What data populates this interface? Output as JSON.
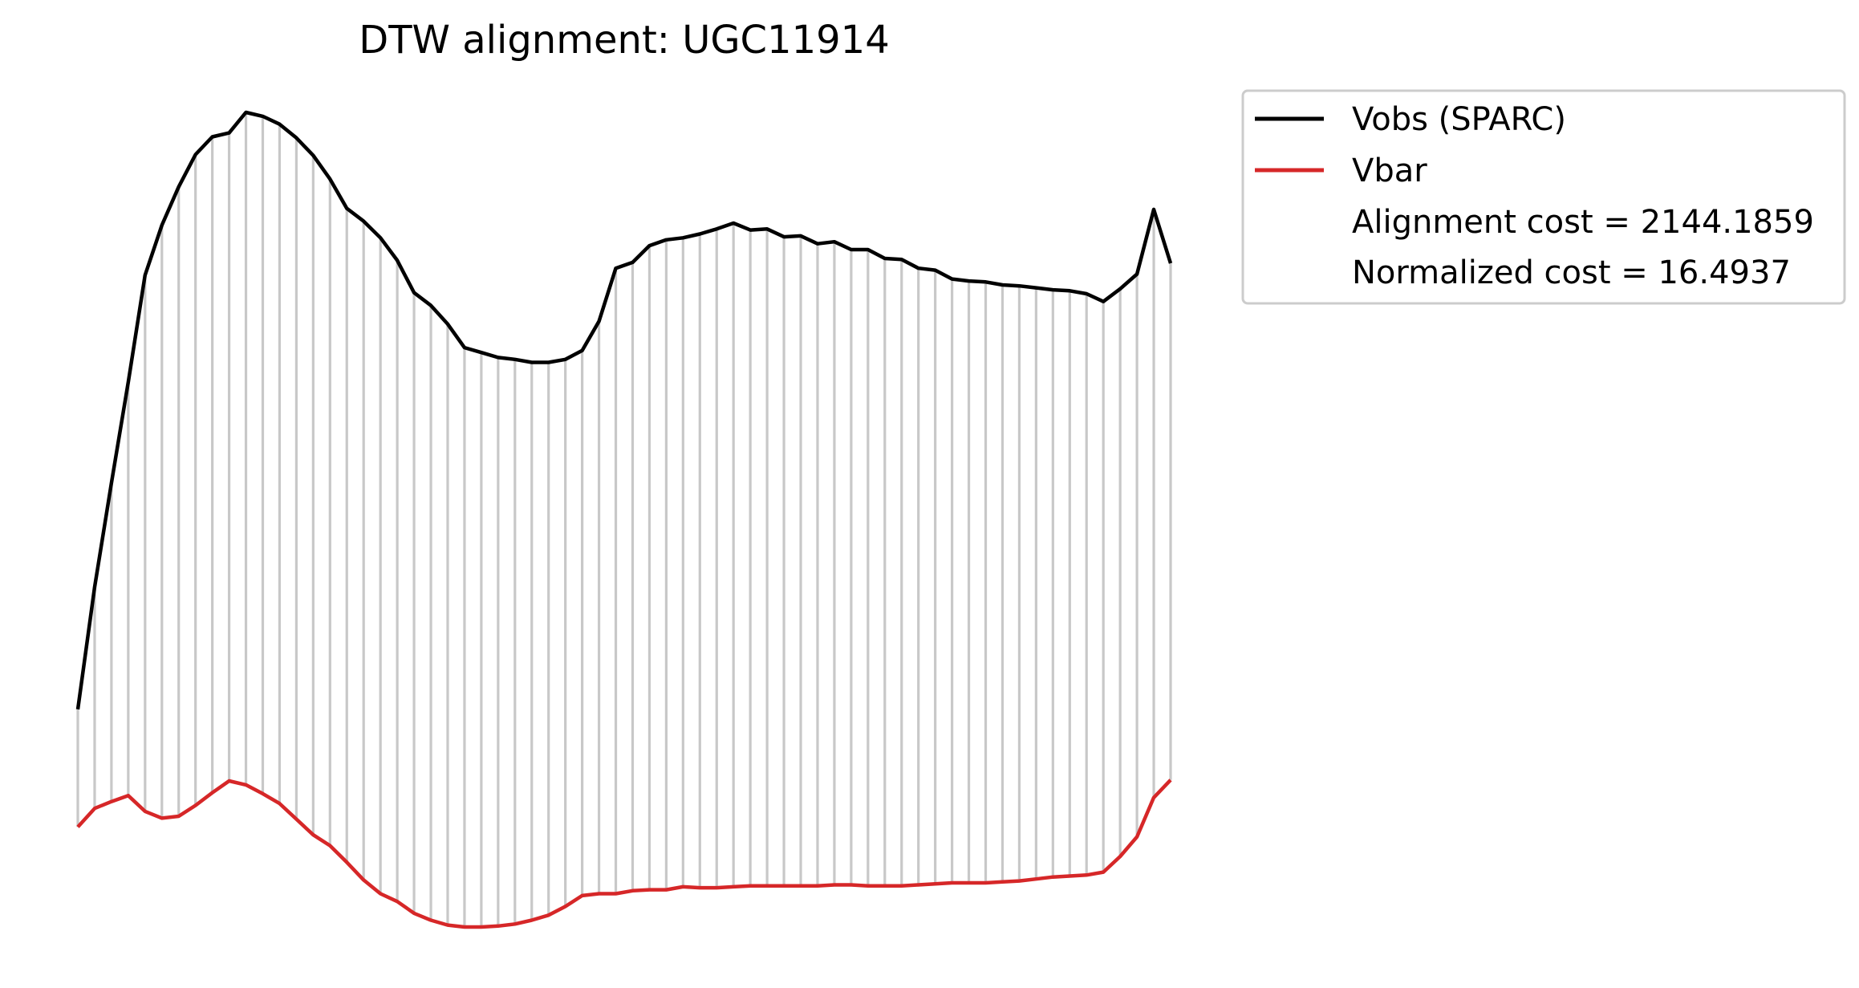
{
  "chart_data": {
    "type": "line",
    "title": "DTW alignment: UGC11914",
    "xlabel": "",
    "ylabel": "",
    "grid": false,
    "axes_visible": false,
    "legend": {
      "placement": "outside-upper-right",
      "entries": [
        {
          "label": "Vobs (SPARC)",
          "color": "#000000"
        },
        {
          "label": "Vbar",
          "color": "#d62728"
        },
        {
          "label": "Alignment cost = 2144.1859",
          "color": null
        },
        {
          "label": "Normalized cost = 16.4937",
          "color": null
        }
      ]
    },
    "connector_color": "#c8c8c8",
    "series": [
      {
        "name": "Vobs (SPARC)",
        "color": "#000000",
        "values": [
          -20.1,
          -7.6,
          3.0,
          13.3,
          24.2,
          29.3,
          33.2,
          36.5,
          38.3,
          38.7,
          40.8,
          40.4,
          39.6,
          38.2,
          36.4,
          34.0,
          31.0,
          29.7,
          28.0,
          25.7,
          22.4,
          21.1,
          19.2,
          16.8,
          16.3,
          15.8,
          15.6,
          15.3,
          15.3,
          15.6,
          16.5,
          19.5,
          24.9,
          25.5,
          27.2,
          27.8,
          28.0,
          28.4,
          28.9,
          29.5,
          28.8,
          28.9,
          28.1,
          28.2,
          27.4,
          27.6,
          26.8,
          26.8,
          25.9,
          25.8,
          24.9,
          24.7,
          23.8,
          23.6,
          23.5,
          23.2,
          23.1,
          22.9,
          22.7,
          22.6,
          22.3,
          21.5,
          22.8,
          24.3,
          30.9,
          25.4
        ]
      },
      {
        "name": "Vbar",
        "color": "#d62728",
        "values": [
          -32.1,
          -30.2,
          -29.5,
          -28.9,
          -30.5,
          -31.2,
          -31.0,
          -29.9,
          -28.6,
          -27.4,
          -27.8,
          -28.7,
          -29.7,
          -31.3,
          -32.9,
          -34.0,
          -35.7,
          -37.5,
          -38.9,
          -39.7,
          -40.9,
          -41.6,
          -42.1,
          -42.3,
          -42.3,
          -42.2,
          -42.0,
          -41.6,
          -41.1,
          -40.2,
          -39.1,
          -38.9,
          -38.9,
          -38.6,
          -38.5,
          -38.5,
          -38.2,
          -38.3,
          -38.3,
          -38.2,
          -38.1,
          -38.1,
          -38.1,
          -38.1,
          -38.1,
          -38.0,
          -38.0,
          -38.1,
          -38.1,
          -38.1,
          -38.0,
          -37.9,
          -37.8,
          -37.8,
          -37.8,
          -37.7,
          -37.6,
          -37.4,
          -37.2,
          -37.1,
          -37.0,
          -36.7,
          -35.1,
          -33.1,
          -29.1,
          -27.3
        ]
      }
    ]
  }
}
